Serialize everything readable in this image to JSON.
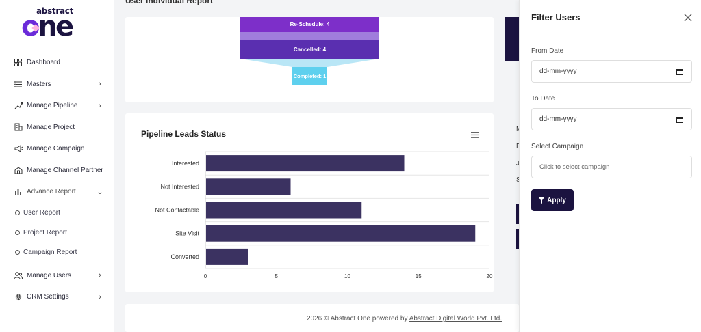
{
  "brand": {
    "small": "abstract",
    "big_o": "o",
    "big_rest": "ne"
  },
  "sidebar": {
    "items": [
      {
        "label": "Dashboard",
        "icon": "dashboard-icon",
        "chevron": ""
      },
      {
        "label": "Masters",
        "icon": "list-icon",
        "chevron": "right"
      },
      {
        "label": "Manage Pipeline",
        "icon": "pipeline-icon",
        "chevron": "right"
      },
      {
        "label": "Manage Project",
        "icon": "building-icon",
        "chevron": ""
      },
      {
        "label": "Manage Campaign",
        "icon": "megaphone-icon",
        "chevron": ""
      },
      {
        "label": "Manage Channel Partner",
        "icon": "handshake-icon",
        "chevron": ""
      },
      {
        "label": "Advance Report",
        "icon": "bar-chart-icon",
        "chevron": "down"
      }
    ],
    "sub_items": [
      "User Report",
      "Project Report",
      "Campaign Report"
    ],
    "bottom_items": [
      {
        "label": "Manage Users",
        "icon": "users-icon",
        "chevron": "right"
      },
      {
        "label": "CRM Settings",
        "icon": "gear-icon",
        "chevron": "right"
      }
    ]
  },
  "main": {
    "page_title": "User Individual Report",
    "funnel": {
      "stages": [
        {
          "label": "Re-Schedule: 4",
          "value": 4,
          "color": "#7d2fc9"
        },
        {
          "label": "Cancelled: 4",
          "value": 4,
          "color": "#5a2fb0"
        },
        {
          "label": "Completed: 1",
          "value": 1,
          "color": "#5ed0ee"
        }
      ]
    },
    "right_letters": [
      "M",
      "E",
      "J",
      "S"
    ],
    "footer": {
      "prefix": "2026 © Abstract One powered by ",
      "link": "Abstract Digital World Pvt. Ltd."
    }
  },
  "chart_data": {
    "type": "bar",
    "orientation": "horizontal",
    "title": "Pipeline Leads Status",
    "categories": [
      "Interested",
      "Not Interested",
      "Not Contactable",
      "Site Visit",
      "Converted"
    ],
    "values": [
      14,
      6,
      11,
      19,
      3
    ],
    "xlim": [
      0,
      20
    ],
    "x_ticks": [
      "0",
      "5",
      "10",
      "15",
      "20"
    ],
    "bar_color": "#3b3261",
    "grid": true
  },
  "filter_panel": {
    "title": "Filter Users",
    "from_label": "From Date",
    "from_value": "dd-mm-yyyy",
    "to_label": "To Date",
    "to_value": "dd-mm-yyyy",
    "campaign_label": "Select Campaign",
    "campaign_placeholder": "Click to select campaign",
    "apply_label": "Apply"
  }
}
